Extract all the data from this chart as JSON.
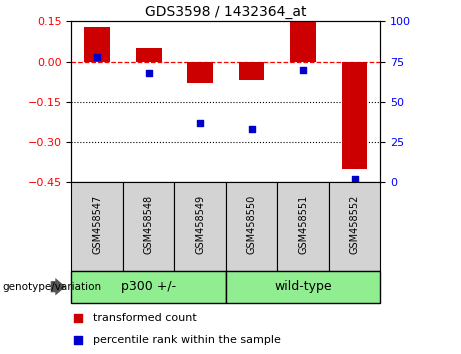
{
  "title": "GDS3598 / 1432364_at",
  "categories": [
    "GSM458547",
    "GSM458548",
    "GSM458549",
    "GSM458550",
    "GSM458551",
    "GSM458552"
  ],
  "bar_values": [
    0.13,
    0.05,
    -0.08,
    -0.07,
    0.15,
    -0.4
  ],
  "scatter_values": [
    78,
    68,
    37,
    33,
    70,
    2
  ],
  "bar_color": "#cc0000",
  "scatter_color": "#0000cc",
  "ylim_left": [
    -0.45,
    0.15
  ],
  "ylim_right": [
    0,
    100
  ],
  "yticks_left": [
    0.15,
    0.0,
    -0.15,
    -0.3,
    -0.45
  ],
  "yticks_right": [
    100,
    75,
    50,
    25,
    0
  ],
  "hline_y": 0,
  "dotted_lines": [
    -0.15,
    -0.3
  ],
  "group1_label": "p300 +/-",
  "group2_label": "wild-type",
  "group_label": "genotype/variation",
  "group_color": "#90ee90",
  "sample_box_color": "#d3d3d3",
  "legend_items": [
    {
      "label": "transformed count",
      "color": "#cc0000"
    },
    {
      "label": "percentile rank within the sample",
      "color": "#0000cc"
    }
  ],
  "bar_width": 0.5,
  "background_color": "#ffffff"
}
